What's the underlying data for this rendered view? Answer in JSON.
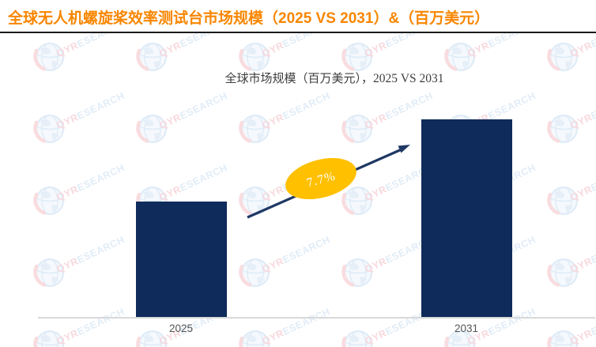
{
  "header": {
    "title": "全球无人机螺旋桨效率测试台市场规模（2025 VS 2031）&（百万美元）"
  },
  "watermark": {
    "brand_q": "QYR",
    "brand_rest": "ESEARCH"
  },
  "chart_data": {
    "type": "bar",
    "title_cn": "全球市场规模（百万美元），",
    "title_latin": "2025 VS 2031",
    "categories": [
      "2025",
      "2031"
    ],
    "series": [
      {
        "name": "全球市场规模（百万美元）",
        "values_relative": [
          0.586,
          1.0
        ]
      }
    ],
    "growth_label": "7.7%",
    "value_labels_shown": false,
    "grid": false,
    "legend": "none",
    "colors": {
      "header_text": "#F88600",
      "bar": "#0F2B5B",
      "arrow": "#1F3864",
      "growth_ellipse": "#FFC000",
      "axis_line": "#D9D9D9"
    }
  }
}
